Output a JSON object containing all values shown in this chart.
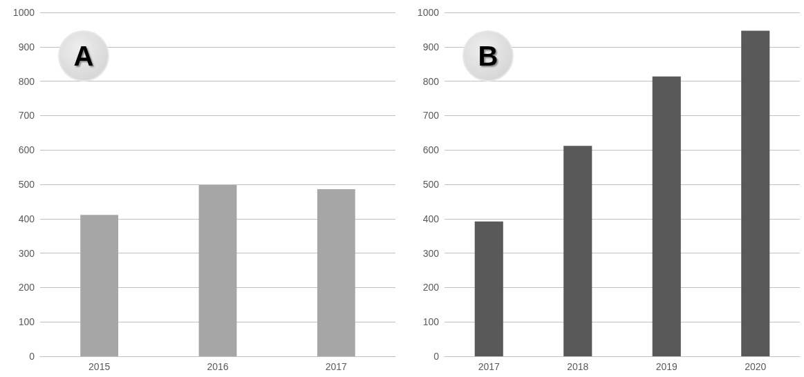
{
  "chart_data": [
    {
      "type": "bar",
      "title": "A",
      "categories": [
        "2015",
        "2016",
        "2017"
      ],
      "values": [
        411,
        498,
        486
      ],
      "color": "#a6a6a6",
      "ylim": [
        0,
        1000
      ],
      "yticks": [
        0,
        100,
        200,
        300,
        400,
        500,
        600,
        700,
        800,
        900,
        1000
      ],
      "grid": "y"
    },
    {
      "type": "bar",
      "title": "B",
      "categories": [
        "2017",
        "2018",
        "2019",
        "2020"
      ],
      "values": [
        392,
        612,
        814,
        947
      ],
      "color": "#595959",
      "ylim": [
        0,
        1000
      ],
      "yticks": [
        0,
        100,
        200,
        300,
        400,
        500,
        600,
        700,
        800,
        900,
        1000
      ],
      "grid": "y"
    }
  ]
}
